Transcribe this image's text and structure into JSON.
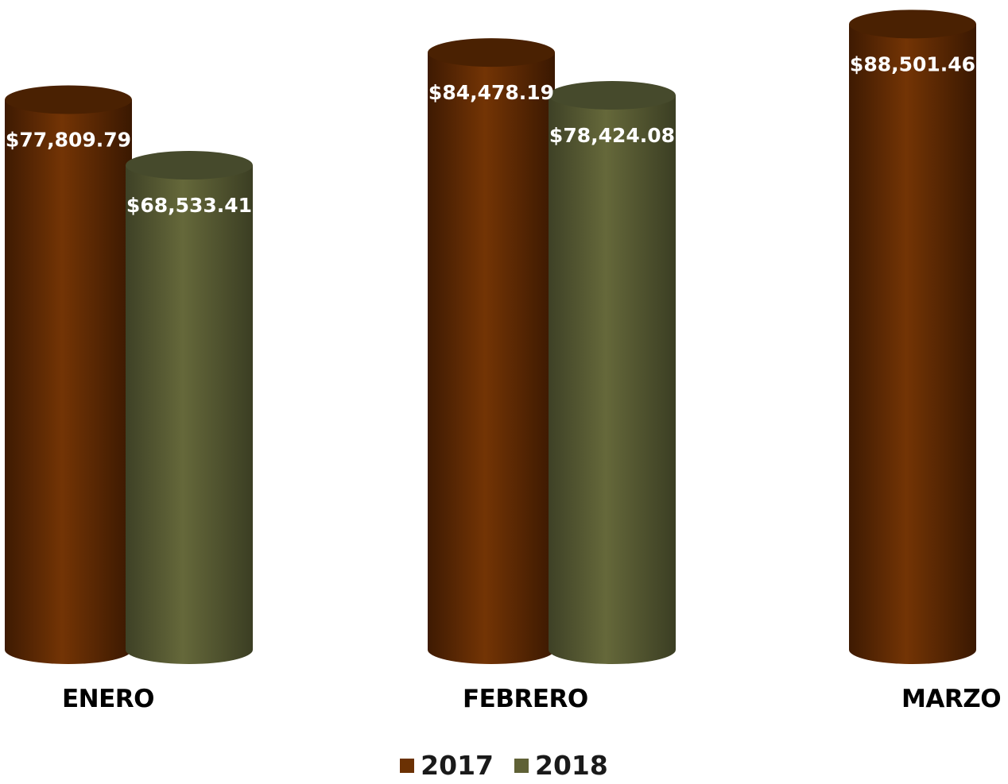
{
  "chart_data": {
    "type": "bar",
    "categories": [
      "ENERO",
      "FEBRERO",
      "MARZO"
    ],
    "series": [
      {
        "name": "2017",
        "color": "#6b3103",
        "values": [
          77809.79,
          84478.19,
          88501.46
        ],
        "labels": [
          "$77,809.79",
          "$84,478.19",
          "$88,501.46"
        ]
      },
      {
        "name": "2018",
        "color": "#5f6136",
        "values": [
          68533.41,
          78424.08,
          null
        ],
        "labels": [
          "$68,533.41",
          "$78,424.08",
          null
        ]
      }
    ],
    "title": "",
    "xlabel": "",
    "ylabel": "",
    "legend_position": "bottom",
    "grid": false
  }
}
